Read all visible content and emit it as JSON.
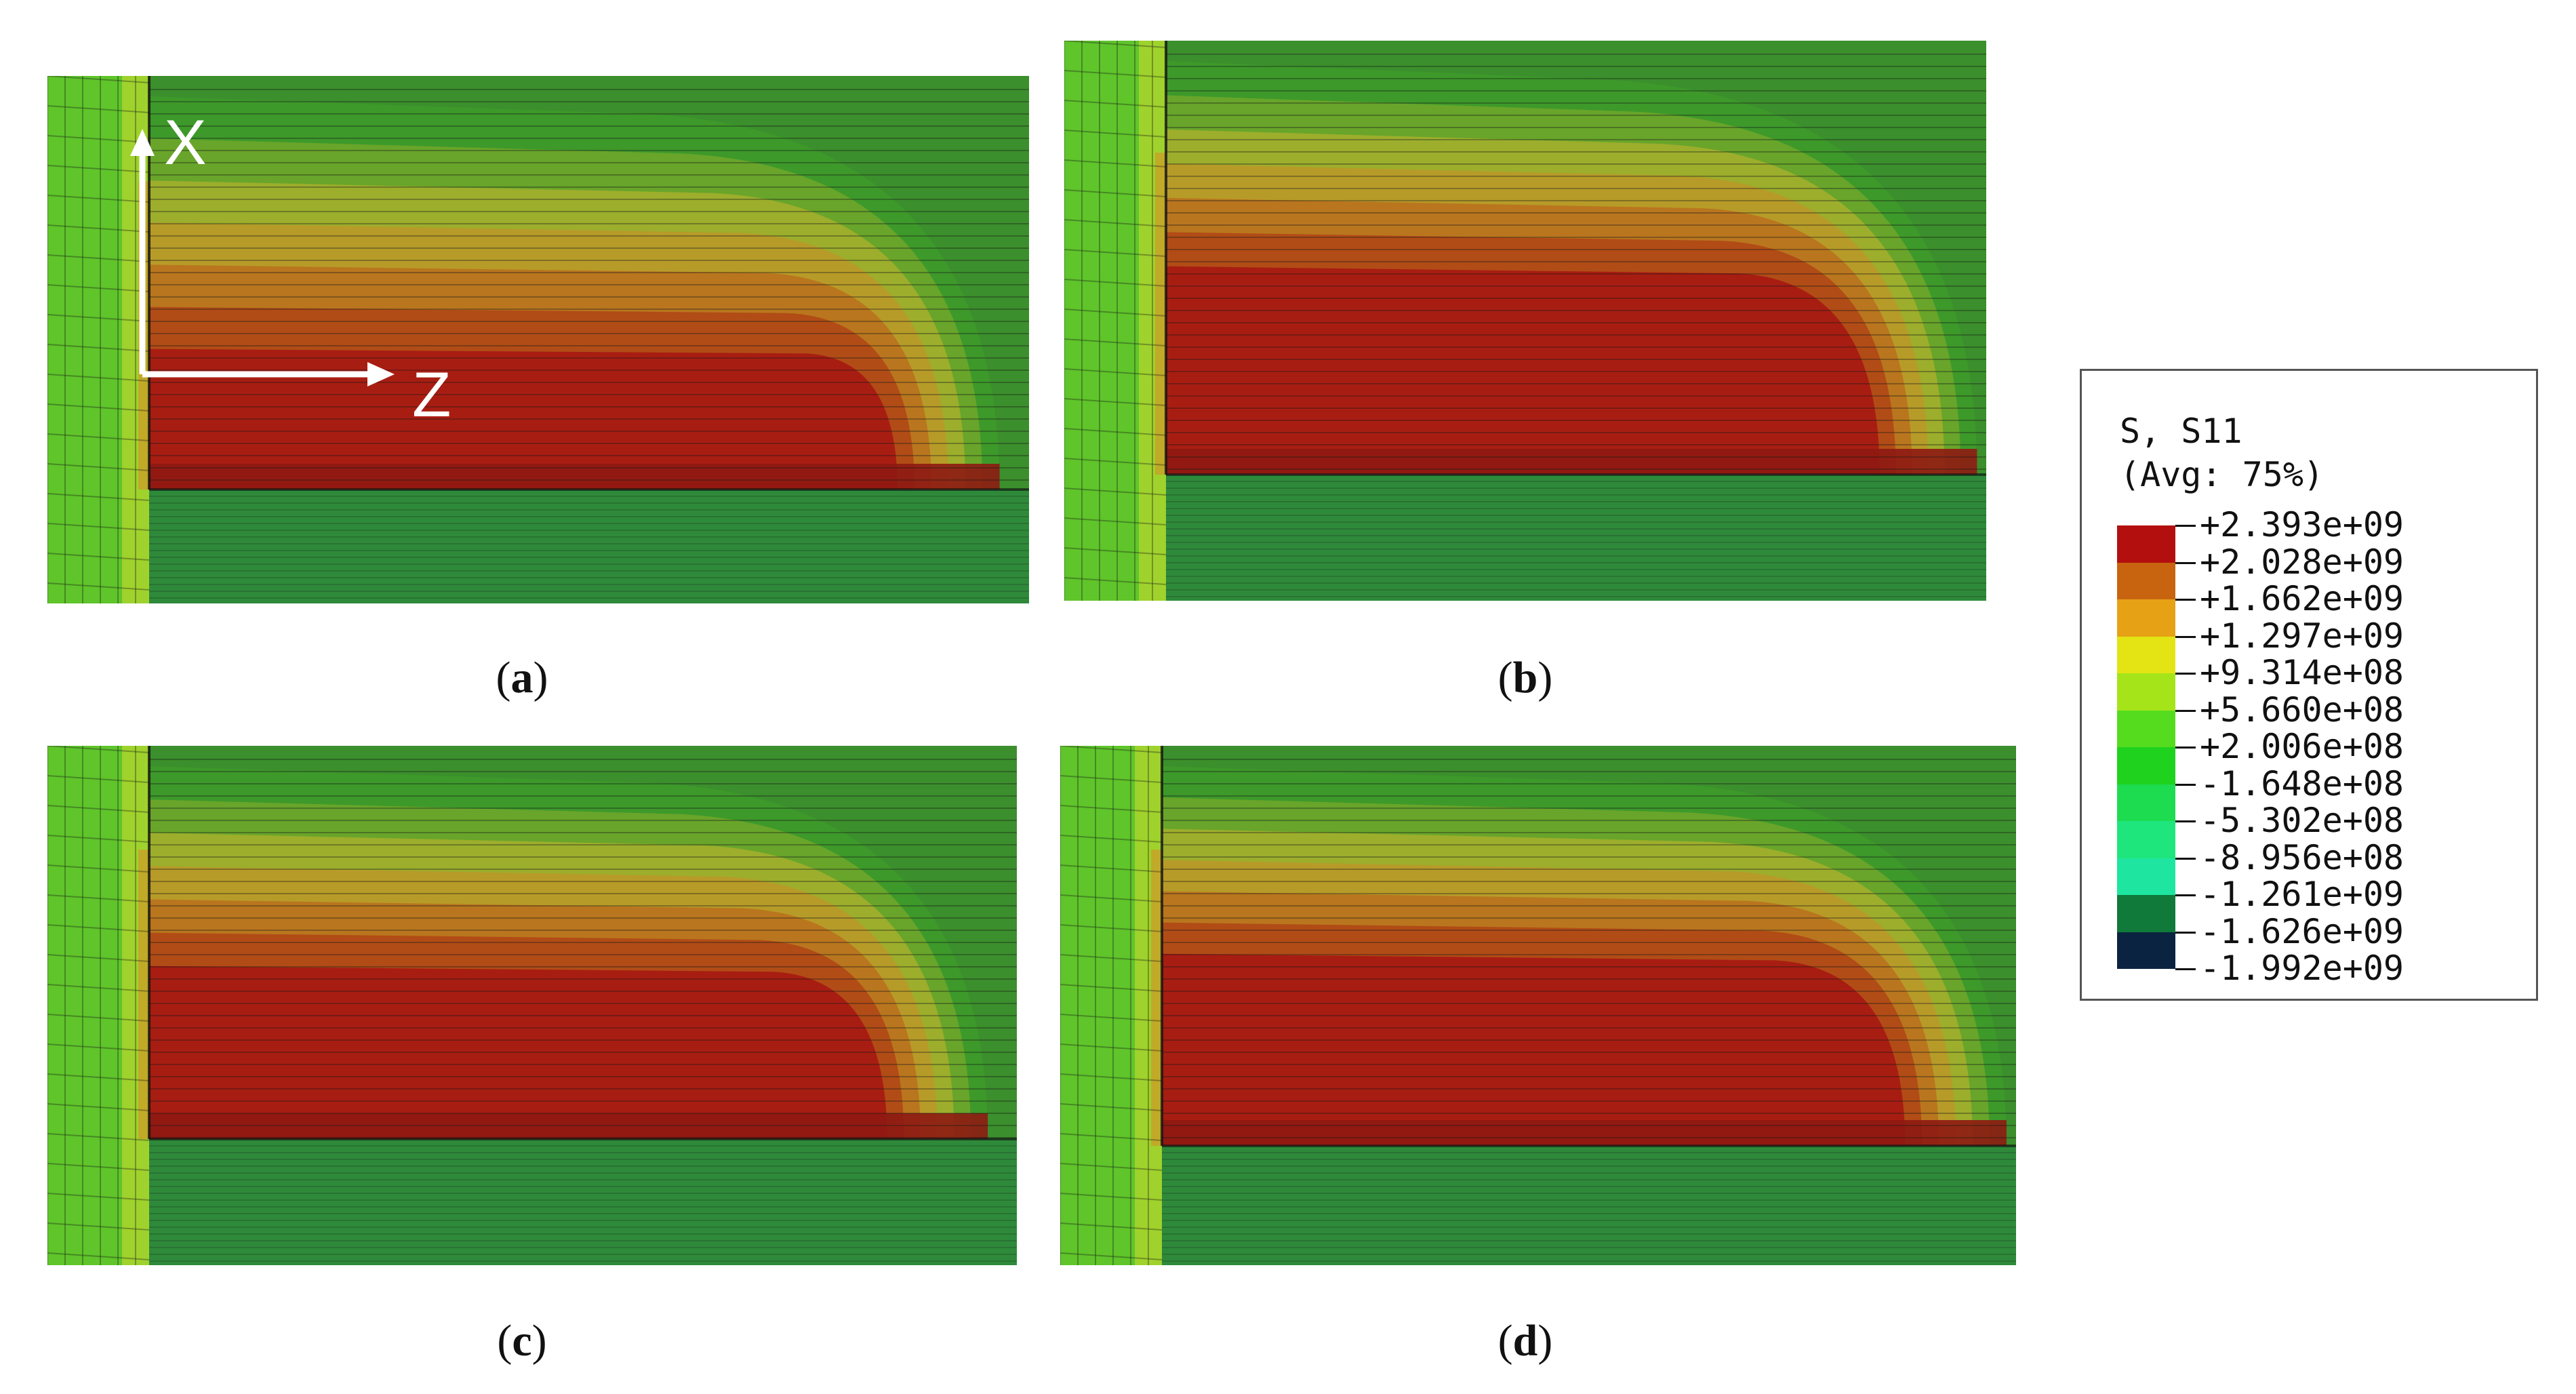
{
  "axes": {
    "x_label": "X",
    "z_label": "Z"
  },
  "panels": [
    {
      "label": "a"
    },
    {
      "label": "b"
    },
    {
      "label": "c"
    },
    {
      "label": "d"
    }
  ],
  "legend": {
    "title": "S, S11",
    "subtitle": "(Avg: 75%)",
    "levels": [
      {
        "value": "+2.393e+09",
        "color": "#b40f0f"
      },
      {
        "value": "+2.028e+09",
        "color": "#c86410"
      },
      {
        "value": "+1.662e+09",
        "color": "#e6a214"
      },
      {
        "value": "+1.297e+09",
        "color": "#e4e414"
      },
      {
        "value": "+9.314e+08",
        "color": "#a6e41a"
      },
      {
        "value": "+5.660e+08",
        "color": "#55dc1e"
      },
      {
        "value": "+2.006e+08",
        "color": "#1ed21e"
      },
      {
        "value": "-1.648e+08",
        "color": "#1edc50"
      },
      {
        "value": "-5.302e+08",
        "color": "#1ee67d"
      },
      {
        "value": "-8.956e+08",
        "color": "#1ee6a0"
      },
      {
        "value": "-1.261e+09",
        "color": "#0f7a3a"
      },
      {
        "value": "-1.626e+09",
        "color": "#0a2340"
      },
      {
        "value": "-1.992e+09",
        "color": ""
      }
    ]
  }
}
